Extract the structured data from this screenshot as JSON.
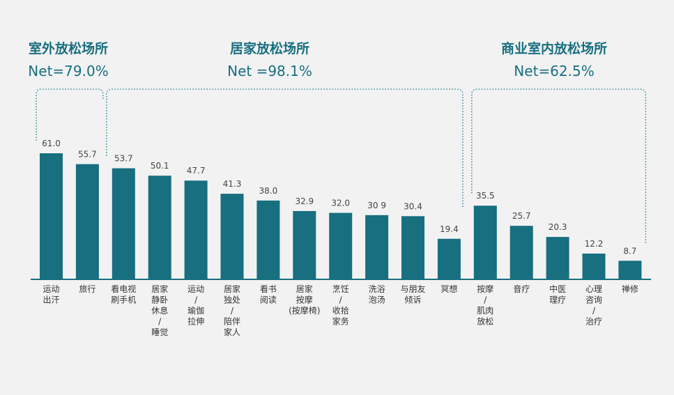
{
  "groups": [
    {
      "title": "室外放松场所",
      "net": "Net=79.0%",
      "start": 0,
      "end": 1
    },
    {
      "title": "居家放松场所",
      "net": "Net =98.1%",
      "start": 2,
      "end": 11
    },
    {
      "title": "商业室内放松场所",
      "net": "Net=62.5%",
      "start": 12,
      "end": 16
    }
  ],
  "chart_data": {
    "type": "bar",
    "categories": [
      [
        "运动",
        "出汗"
      ],
      [
        "旅行"
      ],
      [
        "看电视",
        "刷手机"
      ],
      [
        "居家",
        "静卧",
        "休息",
        "/",
        "睡觉"
      ],
      [
        "运动",
        "/",
        "瑜伽",
        "拉伸"
      ],
      [
        "居家",
        "独处",
        "/",
        "陪伴",
        "家人"
      ],
      [
        "看书",
        "阅读"
      ],
      [
        "居家",
        "按摩",
        "(按摩椅)"
      ],
      [
        "烹饪",
        "/",
        "收拾",
        "家务"
      ],
      [
        "洗浴",
        "泡汤"
      ],
      [
        "与朋友",
        "倾诉"
      ],
      [
        "冥想"
      ],
      [
        "按摩",
        "/",
        "肌肉",
        "放松"
      ],
      [
        "音疗"
      ],
      [
        "中医",
        "理疗"
      ],
      [
        "心理",
        "咨询",
        "/",
        "治疗"
      ],
      [
        "禅修"
      ]
    ],
    "values": [
      61.0,
      55.7,
      53.7,
      50.1,
      47.7,
      41.3,
      38.0,
      32.9,
      32.0,
      30.9,
      30.4,
      19.4,
      35.5,
      25.7,
      20.3,
      12.2,
      8.7
    ],
    "value_labels": [
      "61.0",
      "55.7",
      "53.7",
      "50.1",
      "47.7",
      "41.3",
      "38.0",
      "32.9",
      "32.0",
      "30 9",
      "30.4",
      "19.4",
      "35.5",
      "25.7",
      "20.3",
      "12.2",
      "8.7"
    ],
    "ylim": [
      0,
      61
    ],
    "grid": false,
    "bar_color": "#176f80",
    "bracket_color": "#3a8a96"
  }
}
